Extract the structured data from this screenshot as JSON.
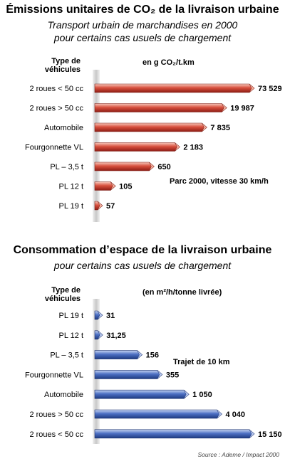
{
  "chart_data": [
    {
      "type": "bar",
      "orientation": "horizontal",
      "title": "Émissions unitaires de CO₂ de la livraison urbaine",
      "subtitle": [
        "Transport urbain de marchandises en 2000",
        "pour certains cas usuels de chargement"
      ],
      "category_header": "Type de véhicules",
      "unit_label": "en g CO₂/t.km",
      "annotation": "Parc 2000, vitesse 30 km/h",
      "categories": [
        "2 roues < 50 cc",
        "2 roues > 50 cc",
        "Automobile",
        "Fourgonnette VL",
        "PL – 3,5 t",
        "PL 12 t",
        "PL 19 t"
      ],
      "values": [
        73529,
        19987,
        7835,
        2183,
        650,
        105,
        57
      ],
      "value_labels": [
        "73 529",
        "19 987",
        "7 835",
        "2 183",
        "650",
        "105",
        "57"
      ],
      "scale": "log",
      "color": "#c8332a"
    },
    {
      "type": "bar",
      "orientation": "horizontal",
      "title": "Consommation d’espace de la livraison urbaine",
      "subtitle": [
        "pour certains cas usuels de chargement"
      ],
      "category_header": "Type de véhicules",
      "unit_label": "(en m²/h/tonne livrée)",
      "annotation": "Trajet de 10 km",
      "categories": [
        "PL 19 t",
        "PL 12 t",
        "PL – 3,5 t",
        "Fourgonnette VL",
        "Automobile",
        "2 roues > 50 cc",
        "2 roues < 50 cc"
      ],
      "values": [
        31,
        31.25,
        156,
        355,
        1050,
        4040,
        15150
      ],
      "value_labels": [
        "31",
        "31,25",
        "156",
        "355",
        "1 050",
        "4 040",
        "15 150"
      ],
      "scale": "log",
      "color": "#3b5fb5"
    }
  ],
  "source": "Source : Ademe / Impact 2000"
}
